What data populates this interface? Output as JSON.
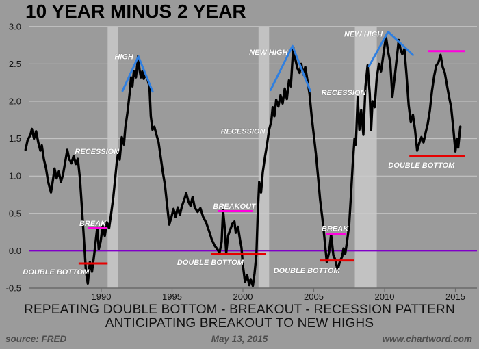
{
  "title": "10 YEAR MINUS 2 YEAR",
  "caption": {
    "line1": "REPEATING DOUBLE BOTTOM - BREAKOUT - RECESSION PATTERN",
    "line2": "ANTICIPATING BREAKOUT TO NEW HIGHS"
  },
  "footer": {
    "source": "source: FRED",
    "date": "May 13, 2015",
    "website": "www.chartword.com"
  },
  "colors": {
    "background": "#9b9b9b",
    "gridline": "#c9c9c9",
    "recession_band": "#c2c2c2",
    "series": "#000000",
    "zero_line": "#8000c8",
    "support_red": "#e60000",
    "break_magenta": "#ff00dd",
    "trend_blue": "#2f7fe0",
    "axis": "#6b6b6b",
    "annotation_text": "#ffffff"
  },
  "chart_data": {
    "type": "line",
    "title": "10 YEAR MINUS 2 YEAR",
    "xlabel": "",
    "ylabel": "",
    "xlim": [
      1984.6,
      2016.6
    ],
    "ylim": [
      -0.5,
      3.0
    ],
    "grid": true,
    "legend": "none",
    "xticks": [
      1990,
      1995,
      2000,
      2005,
      2010,
      2015
    ],
    "xtick_labels": [
      "1990",
      "1995",
      "2000",
      "2005",
      "2010",
      "2015"
    ],
    "yticks": [
      3.0,
      2.5,
      2.0,
      1.5,
      1.0,
      0.5,
      0.0,
      -0.5
    ],
    "ytick_labels": [
      "3.0",
      "2.5",
      "2.0",
      "1.5",
      "1.0",
      "0.5",
      "0.0",
      "-0.5"
    ],
    "recession_bands": [
      [
        1990.45,
        1991.2
      ],
      [
        2001.1,
        2001.85
      ],
      [
        2007.9,
        2009.45
      ]
    ],
    "zero_line": {
      "y": 0.0
    },
    "series": [
      {
        "name": "10-year minus 2-year treasury spread",
        "points": [
          [
            1984.65,
            1.35
          ],
          [
            1984.8,
            1.48
          ],
          [
            1985.0,
            1.55
          ],
          [
            1985.1,
            1.63
          ],
          [
            1985.25,
            1.5
          ],
          [
            1985.4,
            1.6
          ],
          [
            1985.55,
            1.45
          ],
          [
            1985.7,
            1.34
          ],
          [
            1985.8,
            1.41
          ],
          [
            1985.95,
            1.22
          ],
          [
            1986.1,
            1.1
          ],
          [
            1986.25,
            0.92
          ],
          [
            1986.45,
            0.78
          ],
          [
            1986.6,
            0.96
          ],
          [
            1986.7,
            1.1
          ],
          [
            1986.85,
            0.97
          ],
          [
            1987.0,
            1.06
          ],
          [
            1987.15,
            0.92
          ],
          [
            1987.3,
            1.02
          ],
          [
            1987.45,
            1.18
          ],
          [
            1987.6,
            1.35
          ],
          [
            1987.75,
            1.22
          ],
          [
            1987.9,
            1.17
          ],
          [
            1988.05,
            1.27
          ],
          [
            1988.2,
            1.16
          ],
          [
            1988.35,
            1.23
          ],
          [
            1988.5,
            0.95
          ],
          [
            1988.65,
            0.52
          ],
          [
            1988.8,
            0.08
          ],
          [
            1988.92,
            -0.28
          ],
          [
            1989.05,
            -0.44
          ],
          [
            1989.2,
            -0.15
          ],
          [
            1989.35,
            -0.28
          ],
          [
            1989.5,
            -0.05
          ],
          [
            1989.62,
            0.15
          ],
          [
            1989.72,
            0.31
          ],
          [
            1989.82,
            0.02
          ],
          [
            1989.95,
            0.12
          ],
          [
            1990.1,
            0.33
          ],
          [
            1990.25,
            0.2
          ],
          [
            1990.4,
            0.38
          ],
          [
            1990.55,
            0.3
          ],
          [
            1990.7,
            0.5
          ],
          [
            1990.85,
            0.72
          ],
          [
            1991.0,
            1.0
          ],
          [
            1991.1,
            1.2
          ],
          [
            1991.2,
            1.32
          ],
          [
            1991.3,
            1.22
          ],
          [
            1991.45,
            1.52
          ],
          [
            1991.6,
            1.42
          ],
          [
            1991.7,
            1.65
          ],
          [
            1991.85,
            1.85
          ],
          [
            1992.0,
            2.1
          ],
          [
            1992.1,
            2.32
          ],
          [
            1992.2,
            2.2
          ],
          [
            1992.3,
            2.4
          ],
          [
            1992.45,
            2.32
          ],
          [
            1992.6,
            2.6
          ],
          [
            1992.7,
            2.42
          ],
          [
            1992.8,
            2.32
          ],
          [
            1992.9,
            2.4
          ],
          [
            1993.0,
            2.3
          ],
          [
            1993.1,
            2.36
          ],
          [
            1993.25,
            2.3
          ],
          [
            1993.4,
            2.2
          ],
          [
            1993.5,
            1.8
          ],
          [
            1993.62,
            1.62
          ],
          [
            1993.75,
            1.66
          ],
          [
            1993.9,
            1.55
          ],
          [
            1994.05,
            1.45
          ],
          [
            1994.2,
            1.25
          ],
          [
            1994.35,
            1.05
          ],
          [
            1994.5,
            0.88
          ],
          [
            1994.65,
            0.6
          ],
          [
            1994.8,
            0.35
          ],
          [
            1994.95,
            0.45
          ],
          [
            1995.1,
            0.56
          ],
          [
            1995.25,
            0.45
          ],
          [
            1995.4,
            0.58
          ],
          [
            1995.55,
            0.48
          ],
          [
            1995.7,
            0.6
          ],
          [
            1995.85,
            0.68
          ],
          [
            1996.0,
            0.77
          ],
          [
            1996.15,
            0.66
          ],
          [
            1996.3,
            0.6
          ],
          [
            1996.45,
            0.72
          ],
          [
            1996.6,
            0.58
          ],
          [
            1996.8,
            0.52
          ],
          [
            1997.0,
            0.57
          ],
          [
            1997.2,
            0.45
          ],
          [
            1997.4,
            0.38
          ],
          [
            1997.6,
            0.27
          ],
          [
            1997.8,
            0.15
          ],
          [
            1998.0,
            0.07
          ],
          [
            1998.2,
            0.02
          ],
          [
            1998.35,
            -0.03
          ],
          [
            1998.5,
            0.12
          ],
          [
            1998.6,
            0.54
          ],
          [
            1998.72,
            0.3
          ],
          [
            1998.82,
            -0.03
          ],
          [
            1998.95,
            0.2
          ],
          [
            1999.1,
            0.28
          ],
          [
            1999.25,
            0.36
          ],
          [
            1999.4,
            0.39
          ],
          [
            1999.5,
            0.24
          ],
          [
            1999.65,
            0.32
          ],
          [
            1999.8,
            0.14
          ],
          [
            1999.9,
            0.04
          ],
          [
            2000.0,
            -0.2
          ],
          [
            2000.15,
            -0.42
          ],
          [
            2000.3,
            -0.33
          ],
          [
            2000.45,
            -0.46
          ],
          [
            2000.55,
            -0.38
          ],
          [
            2000.7,
            -0.47
          ],
          [
            2000.82,
            -0.3
          ],
          [
            2000.95,
            -0.05
          ],
          [
            2001.05,
            0.5
          ],
          [
            2001.15,
            0.92
          ],
          [
            2001.28,
            0.78
          ],
          [
            2001.4,
            1.05
          ],
          [
            2001.55,
            1.25
          ],
          [
            2001.7,
            1.42
          ],
          [
            2001.85,
            1.62
          ],
          [
            2002.0,
            1.73
          ],
          [
            2002.1,
            1.92
          ],
          [
            2002.22,
            1.8
          ],
          [
            2002.35,
            2.02
          ],
          [
            2002.5,
            1.93
          ],
          [
            2002.65,
            2.08
          ],
          [
            2002.8,
            1.97
          ],
          [
            2002.95,
            2.17
          ],
          [
            2003.1,
            2.03
          ],
          [
            2003.25,
            2.28
          ],
          [
            2003.38,
            2.2
          ],
          [
            2003.55,
            2.72
          ],
          [
            2003.7,
            2.56
          ],
          [
            2003.85,
            2.44
          ],
          [
            2004.0,
            2.38
          ],
          [
            2004.12,
            2.5
          ],
          [
            2004.25,
            2.36
          ],
          [
            2004.4,
            2.46
          ],
          [
            2004.55,
            2.28
          ],
          [
            2004.7,
            2.1
          ],
          [
            2004.85,
            1.8
          ],
          [
            2005.0,
            1.55
          ],
          [
            2005.15,
            1.3
          ],
          [
            2005.3,
            1.0
          ],
          [
            2005.45,
            0.68
          ],
          [
            2005.6,
            0.45
          ],
          [
            2005.75,
            0.18
          ],
          [
            2005.92,
            -0.15
          ],
          [
            2006.08,
            -0.02
          ],
          [
            2006.22,
            0.22
          ],
          [
            2006.38,
            -0.06
          ],
          [
            2006.52,
            -0.12
          ],
          [
            2006.68,
            -0.26
          ],
          [
            2006.85,
            -0.14
          ],
          [
            2007.0,
            -0.08
          ],
          [
            2007.1,
            0.03
          ],
          [
            2007.22,
            -0.04
          ],
          [
            2007.35,
            0.12
          ],
          [
            2007.5,
            0.35
          ],
          [
            2007.62,
            0.72
          ],
          [
            2007.75,
            1.15
          ],
          [
            2007.88,
            1.5
          ],
          [
            2007.97,
            1.42
          ],
          [
            2008.1,
            2.05
          ],
          [
            2008.22,
            1.62
          ],
          [
            2008.35,
            1.88
          ],
          [
            2008.5,
            1.55
          ],
          [
            2008.65,
            2.2
          ],
          [
            2008.8,
            2.48
          ],
          [
            2008.95,
            2.1
          ],
          [
            2009.05,
            1.62
          ],
          [
            2009.15,
            2.0
          ],
          [
            2009.3,
            1.92
          ],
          [
            2009.45,
            2.32
          ],
          [
            2009.6,
            2.5
          ],
          [
            2009.75,
            2.4
          ],
          [
            2009.9,
            2.6
          ],
          [
            2010.0,
            2.74
          ],
          [
            2010.1,
            2.86
          ],
          [
            2010.25,
            2.66
          ],
          [
            2010.4,
            2.52
          ],
          [
            2010.55,
            2.06
          ],
          [
            2010.7,
            2.3
          ],
          [
            2010.85,
            2.56
          ],
          [
            2011.0,
            2.82
          ],
          [
            2011.12,
            2.7
          ],
          [
            2011.25,
            2.63
          ],
          [
            2011.4,
            2.7
          ],
          [
            2011.55,
            2.35
          ],
          [
            2011.7,
            1.95
          ],
          [
            2011.85,
            1.72
          ],
          [
            2012.0,
            1.82
          ],
          [
            2012.15,
            1.62
          ],
          [
            2012.3,
            1.34
          ],
          [
            2012.45,
            1.44
          ],
          [
            2012.6,
            1.52
          ],
          [
            2012.75,
            1.45
          ],
          [
            2012.9,
            1.58
          ],
          [
            2013.05,
            1.7
          ],
          [
            2013.2,
            1.88
          ],
          [
            2013.35,
            2.14
          ],
          [
            2013.5,
            2.34
          ],
          [
            2013.65,
            2.48
          ],
          [
            2013.8,
            2.52
          ],
          [
            2013.95,
            2.62
          ],
          [
            2014.1,
            2.46
          ],
          [
            2014.25,
            2.38
          ],
          [
            2014.4,
            2.22
          ],
          [
            2014.55,
            2.06
          ],
          [
            2014.7,
            1.92
          ],
          [
            2014.85,
            1.64
          ],
          [
            2015.0,
            1.33
          ],
          [
            2015.1,
            1.5
          ],
          [
            2015.2,
            1.38
          ],
          [
            2015.35,
            1.66
          ]
        ]
      }
    ],
    "level_lines": [
      {
        "name": "double-bottom-support-1",
        "kind": "red",
        "y": -0.17,
        "x1": 1988.4,
        "x2": 1990.45
      },
      {
        "name": "break-resistance-1",
        "kind": "magenta",
        "y": 0.31,
        "x1": 1989.08,
        "x2": 1990.4
      },
      {
        "name": "double-bottom-support-2",
        "kind": "red",
        "y": -0.04,
        "x1": 1997.78,
        "x2": 2001.6
      },
      {
        "name": "breakout-resistance",
        "kind": "magenta",
        "y": 0.53,
        "x1": 1998.25,
        "x2": 2000.7
      },
      {
        "name": "double-bottom-support-3",
        "kind": "red",
        "y": -0.13,
        "x1": 2005.45,
        "x2": 2007.85
      },
      {
        "name": "break-resistance-2",
        "kind": "magenta",
        "y": 0.22,
        "x1": 2005.85,
        "x2": 2007.25
      },
      {
        "name": "double-bottom-support-4",
        "kind": "red",
        "y": 1.27,
        "x1": 2011.75,
        "x2": 2015.7
      },
      {
        "name": "new-high-target",
        "kind": "magenta",
        "y": 2.67,
        "x1": 2013.05,
        "x2": 2015.7
      }
    ],
    "trend_lines": [
      {
        "name": "peak-trendlines-1992",
        "points": [
          [
            1991.5,
            2.14
          ],
          [
            1992.62,
            2.6
          ],
          [
            1993.63,
            2.13
          ]
        ]
      },
      {
        "name": "peak-trendlines-2003",
        "points": [
          [
            2001.95,
            2.15
          ],
          [
            2003.5,
            2.74
          ],
          [
            2004.75,
            2.14
          ]
        ]
      },
      {
        "name": "peak-trendlines-2010",
        "points": [
          [
            2008.9,
            2.47
          ],
          [
            2010.25,
            2.93
          ],
          [
            2012.0,
            2.62
          ]
        ]
      }
    ],
    "annotations": [
      {
        "name": "high-label",
        "text": "HIGH",
        "x": 1991.6,
        "y": 2.6
      },
      {
        "name": "recession-label-1",
        "text": "RECESSION",
        "x": 1989.7,
        "y": 1.33
      },
      {
        "name": "break-label-1",
        "text": "BREAK",
        "x": 1989.4,
        "y": 0.37
      },
      {
        "name": "double-bottom-label-1",
        "text": "DOUBLE BOTTOM",
        "x": 1986.8,
        "y": -0.28
      },
      {
        "name": "breakout-label",
        "text": "BREAKOUT",
        "x": 1999.4,
        "y": 0.6
      },
      {
        "name": "double-bottom-label-2",
        "text": "DOUBLE BOTTOM",
        "x": 1997.7,
        "y": -0.15
      },
      {
        "name": "recession-label-2",
        "text": "RECESSION",
        "x": 2000.0,
        "y": 1.6
      },
      {
        "name": "new-high-label-1",
        "text": "NEW HIGH",
        "x": 2001.8,
        "y": 2.66
      },
      {
        "name": "double-bottom-label-3",
        "text": "DOUBLE BOTTOM",
        "x": 2004.5,
        "y": -0.26
      },
      {
        "name": "break-label-2",
        "text": "BREAK",
        "x": 2006.5,
        "y": 0.3
      },
      {
        "name": "recession-label-3",
        "text": "RECESSION",
        "x": 2007.1,
        "y": 2.12
      },
      {
        "name": "new-high-label-2",
        "text": "NEW HIGH",
        "x": 2008.5,
        "y": 2.9
      },
      {
        "name": "double-bottom-label-4",
        "text": "DOUBLE BOTTOM",
        "x": 2012.6,
        "y": 1.15
      }
    ]
  }
}
